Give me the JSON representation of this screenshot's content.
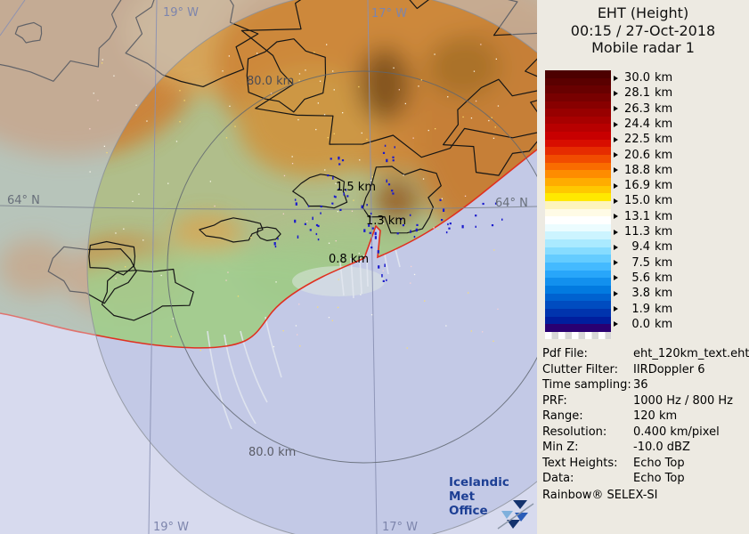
{
  "panel": {
    "title_lines": [
      "EHT (Height)",
      "00:15 / 27-Oct-2018",
      "Mobile radar 1"
    ],
    "colorbar": {
      "labels": [
        "30.0 km",
        "28.1 km",
        "26.3 km",
        "24.4 km",
        "22.5 km",
        "20.6 km",
        "18.8 km",
        "16.9 km",
        "15.0 km",
        "13.1 km",
        "11.3 km",
        "9.4 km",
        "7.5 km",
        "5.6 km",
        "3.8 km",
        "1.9 km",
        "0.0 km"
      ],
      "band_colors": [
        "#4c0000",
        "#5a0000",
        "#680000",
        "#780000",
        "#880000",
        "#980000",
        "#a80000",
        "#b80000",
        "#c80000",
        "#d80e00",
        "#e62c00",
        "#f14c00",
        "#f96c00",
        "#fe8c00",
        "#ffac00",
        "#ffc800",
        "#ffe800",
        "#fdf4bc",
        "#fffbe6",
        "#ffffff",
        "#ecfcff",
        "#ccf4ff",
        "#aaeaff",
        "#86dcff",
        "#64ccff",
        "#44baff",
        "#28a6fa",
        "#1290ee",
        "#027ae0",
        "#0062d0",
        "#004cc0",
        "#0034ae",
        "#001e9e",
        "#2a0072"
      ]
    },
    "metadata": [
      {
        "label": "Pdf File:",
        "value": "eht_120km_text.eht"
      },
      {
        "label": "Clutter Filter:",
        "value": "IIRDoppler 6"
      },
      {
        "label": "Time sampling:",
        "value": "36"
      },
      {
        "label": "PRF:",
        "value": "1000 Hz / 800 Hz"
      },
      {
        "label": "Range:",
        "value": "120 km"
      },
      {
        "label": "Resolution:",
        "value": "0.400 km/pixel"
      },
      {
        "label": "Min Z:",
        "value": "-10.0 dBZ"
      },
      {
        "label": "Text Heights:",
        "value": "Echo Top"
      },
      {
        "label": "Data:",
        "value": "Echo Top"
      }
    ],
    "footer": "Rainbow® SELEX-SI"
  },
  "map": {
    "range_ring_labels": {
      "top": "80.0 km",
      "bottom": "80.0 km"
    },
    "coordinates": {
      "lon_top_left": "19° W",
      "lon_top_right": "17° W",
      "lon_bottom_left": "19° W",
      "lon_bottom_right": "17° W",
      "lat_left": "64° N",
      "lat_right": "64° N"
    },
    "echo_height_annotations": [
      {
        "text": "1.5 km"
      },
      {
        "text": "1.3 km"
      },
      {
        "text": "0.8 km"
      }
    ],
    "logo": {
      "line1": "Icelandic Met",
      "line2": "Office"
    },
    "colors": {
      "sea": "#c3c9e6",
      "sea_out_of_range": "#d2d5ed",
      "coastline": "#e03020",
      "echo_dot": "#1a1acc",
      "logo_blue": "#1d3f94",
      "panel_background": "#edeae2"
    }
  }
}
